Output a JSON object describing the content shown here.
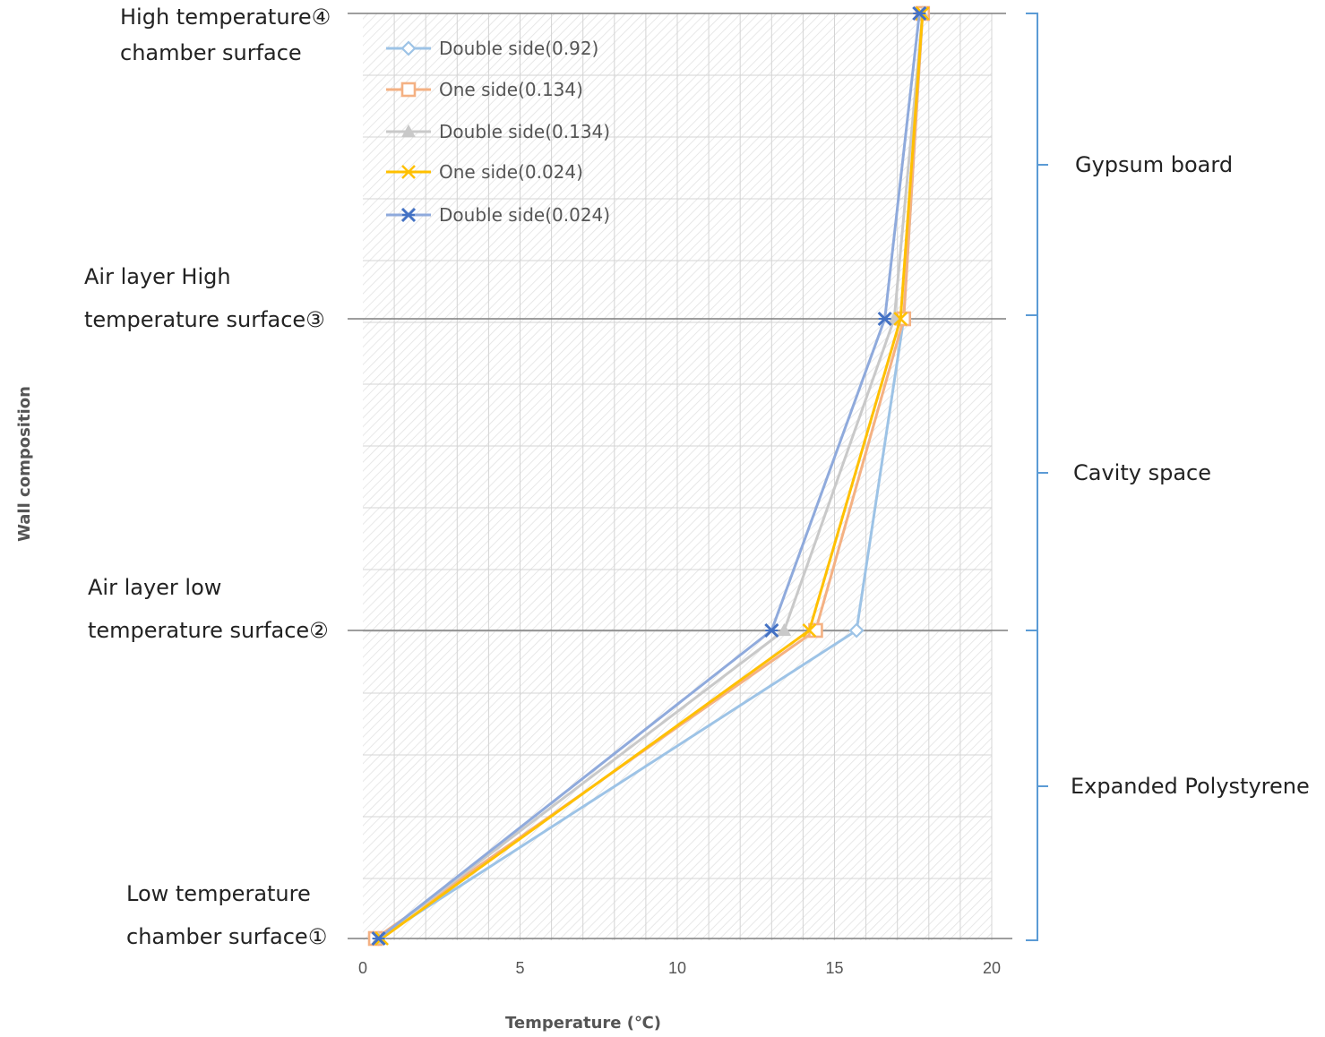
{
  "chart_data": {
    "type": "line",
    "xlabel": "Temperature (℃)",
    "ylabel": "Wall composition",
    "xlim": [
      0,
      20
    ],
    "x_ticks": [
      "0",
      "5",
      "10",
      "15",
      "20"
    ],
    "levels": [
      {
        "lines": [
          "Low temperature",
          "chamber surface①"
        ]
      },
      {
        "lines": [
          "Air layer low",
          "temperature surface②"
        ]
      },
      {
        "lines": [
          "Air layer High",
          "temperature surface③"
        ]
      },
      {
        "lines": [
          "High temperature④",
          "chamber surface"
        ]
      }
    ],
    "layers": [
      "Expanded Polystyrene",
      "Cavity space",
      "Gypsum board"
    ],
    "series": [
      {
        "name": "Double side(0.92)",
        "color": "#9dc3e6",
        "marker": "diamond",
        "values": [
          0.5,
          15.7,
          17.2,
          17.8
        ]
      },
      {
        "name": "One side(0.134)",
        "color": "#f4b183",
        "marker": "square",
        "values": [
          0.4,
          14.4,
          17.2,
          17.8
        ]
      },
      {
        "name": "Double side(0.134)",
        "color": "#c9c9c9",
        "marker": "triangle",
        "values": [
          0.5,
          13.4,
          16.9,
          17.8
        ]
      },
      {
        "name": "One side(0.024)",
        "color": "#ffc000",
        "marker": "x",
        "values": [
          0.6,
          14.2,
          17.1,
          17.8
        ]
      },
      {
        "name": "Double side(0.024)",
        "color": "#8faadc",
        "marker": "star",
        "values": [
          0.5,
          13.0,
          16.6,
          17.7
        ]
      }
    ]
  }
}
